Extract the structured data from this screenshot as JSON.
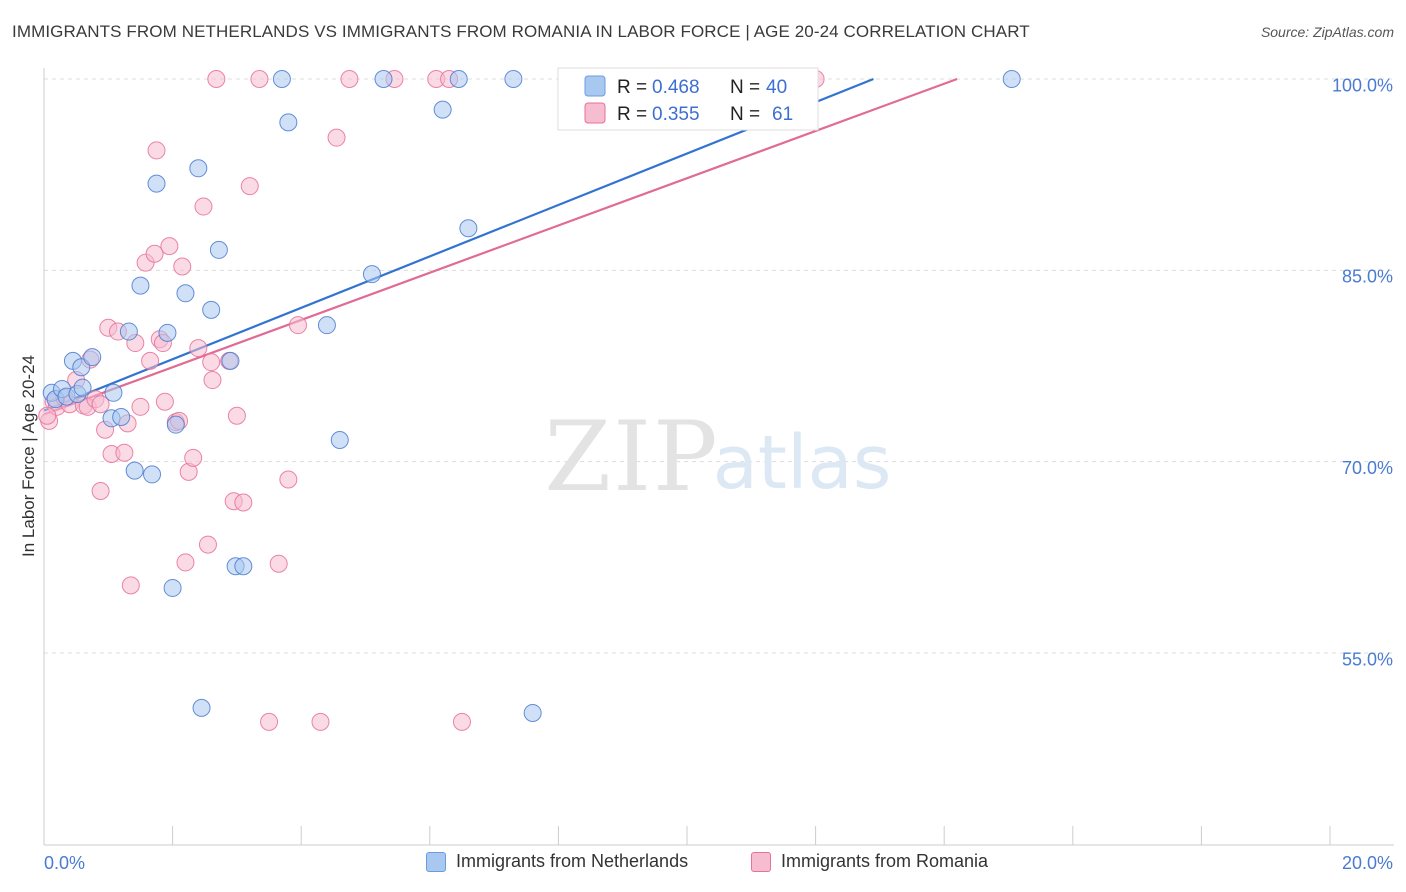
{
  "header": {
    "title": "IMMIGRANTS FROM NETHERLANDS VS IMMIGRANTS FROM ROMANIA IN LABOR FORCE | AGE 20-24 CORRELATION CHART",
    "source": "Source: ZipAtlas.com"
  },
  "colors": {
    "blue": "#4a7bd0",
    "blue_fill": "#a9c8f0",
    "blue_line": "#3273d1",
    "pink": "#e8709a",
    "pink_fill": "#f6bccf",
    "pink_line": "#e06b94",
    "grid": "#dddddd"
  },
  "watermark": {
    "zip": "ZIP",
    "atlas": "atlas"
  },
  "legend": {
    "rows": [
      {
        "r_label": "R = ",
        "r_value": "0.468",
        "n_label": "N = ",
        "n_value": "40"
      },
      {
        "r_label": "R = ",
        "r_value": "0.355",
        "n_label": "N = ",
        "n_value": "61"
      }
    ]
  },
  "bottom_legend": {
    "netherlands": "Immigrants from Netherlands",
    "romania": "Immigrants from Romania"
  },
  "chart_data": {
    "type": "scatter",
    "title": "IMMIGRANTS FROM NETHERLANDS VS IMMIGRANTS FROM ROMANIA IN LABOR FORCE | AGE 20-24 CORRELATION CHART",
    "xlabel": "",
    "ylabel": "In Labor Force | Age 20-24",
    "xlim": [
      0,
      20
    ],
    "ylim": [
      40,
      101
    ],
    "x_tick_labels": [
      {
        "value": 0,
        "label": "0.0%"
      },
      {
        "value": 20,
        "label": "20.0%"
      }
    ],
    "y_tick_labels": [
      {
        "value": 100,
        "label": "100.0%"
      },
      {
        "value": 85,
        "label": "85.0%"
      },
      {
        "value": 70,
        "label": "70.0%"
      },
      {
        "value": 55,
        "label": "55.0%"
      }
    ],
    "gridlines_y": [
      100.5,
      85.5,
      70.5,
      55.5
    ],
    "series": [
      {
        "name": "Immigrants from Netherlands",
        "color": "#4a7bd0",
        "r": 0.468,
        "n": 40,
        "trend": {
          "x0": 0,
          "y0": 74.5,
          "x1": 12.9,
          "y1": 100.5
        },
        "points": [
          [
            0.12,
            75.9
          ],
          [
            0.18,
            75.4
          ],
          [
            0.28,
            76.2
          ],
          [
            0.35,
            75.6
          ],
          [
            0.45,
            78.4
          ],
          [
            0.52,
            75.8
          ],
          [
            0.58,
            77.9
          ],
          [
            0.6,
            76.3
          ],
          [
            0.75,
            78.7
          ],
          [
            1.05,
            73.9
          ],
          [
            1.08,
            75.9
          ],
          [
            1.2,
            74.0
          ],
          [
            1.32,
            80.7
          ],
          [
            1.41,
            69.8
          ],
          [
            1.5,
            84.3
          ],
          [
            1.68,
            69.5
          ],
          [
            1.75,
            92.3
          ],
          [
            1.92,
            80.6
          ],
          [
            2.0,
            60.6
          ],
          [
            2.05,
            73.4
          ],
          [
            2.2,
            83.7
          ],
          [
            2.4,
            93.5
          ],
          [
            2.45,
            51.2
          ],
          [
            2.6,
            82.4
          ],
          [
            2.72,
            87.1
          ],
          [
            2.9,
            78.4
          ],
          [
            2.98,
            62.3
          ],
          [
            3.1,
            62.3
          ],
          [
            3.7,
            100.5
          ],
          [
            3.8,
            97.1
          ],
          [
            4.4,
            81.2
          ],
          [
            4.6,
            72.2
          ],
          [
            5.1,
            85.2
          ],
          [
            5.28,
            100.5
          ],
          [
            6.2,
            98.1
          ],
          [
            6.45,
            100.5
          ],
          [
            6.6,
            88.8
          ],
          [
            7.3,
            100.5
          ],
          [
            7.6,
            50.8
          ],
          [
            15.05,
            100.5
          ]
        ]
      },
      {
        "name": "Immigrants from Romania",
        "color": "#e8709a",
        "r": 0.355,
        "n": 61,
        "trend": {
          "x0": 0,
          "y0": 74.2,
          "x1": 14.2,
          "y1": 100.5
        },
        "points": [
          [
            0.08,
            73.7
          ],
          [
            0.15,
            75.2
          ],
          [
            0.2,
            74.8
          ],
          [
            0.32,
            75.5
          ],
          [
            0.4,
            75.0
          ],
          [
            0.5,
            76.9
          ],
          [
            0.62,
            74.9
          ],
          [
            0.68,
            74.8
          ],
          [
            0.72,
            78.5
          ],
          [
            0.8,
            75.4
          ],
          [
            0.88,
            75.0
          ],
          [
            0.88,
            68.2
          ],
          [
            0.95,
            73.0
          ],
          [
            1.0,
            81.0
          ],
          [
            1.05,
            71.1
          ],
          [
            1.15,
            80.7
          ],
          [
            1.25,
            71.2
          ],
          [
            1.3,
            73.5
          ],
          [
            1.35,
            60.8
          ],
          [
            1.42,
            79.8
          ],
          [
            1.5,
            74.8
          ],
          [
            1.58,
            86.1
          ],
          [
            1.65,
            78.4
          ],
          [
            1.72,
            86.8
          ],
          [
            1.75,
            94.9
          ],
          [
            1.8,
            80.1
          ],
          [
            1.85,
            79.8
          ],
          [
            1.88,
            75.2
          ],
          [
            1.95,
            87.4
          ],
          [
            2.05,
            73.6
          ],
          [
            2.1,
            73.7
          ],
          [
            2.15,
            85.8
          ],
          [
            2.2,
            62.6
          ],
          [
            2.25,
            69.7
          ],
          [
            2.32,
            70.8
          ],
          [
            2.4,
            79.4
          ],
          [
            2.48,
            90.5
          ],
          [
            2.55,
            64.0
          ],
          [
            2.6,
            78.3
          ],
          [
            2.62,
            76.9
          ],
          [
            2.68,
            100.5
          ],
          [
            2.88,
            78.4
          ],
          [
            2.95,
            67.4
          ],
          [
            3.0,
            74.1
          ],
          [
            3.1,
            67.3
          ],
          [
            3.2,
            92.1
          ],
          [
            3.35,
            100.5
          ],
          [
            3.5,
            50.1
          ],
          [
            3.65,
            62.5
          ],
          [
            3.8,
            69.1
          ],
          [
            3.95,
            81.2
          ],
          [
            4.3,
            50.1
          ],
          [
            4.55,
            95.9
          ],
          [
            4.75,
            100.5
          ],
          [
            5.45,
            100.5
          ],
          [
            6.1,
            100.5
          ],
          [
            6.3,
            100.5
          ],
          [
            6.5,
            50.1
          ],
          [
            11.85,
            100.5
          ],
          [
            12.0,
            100.5
          ],
          [
            0.05,
            74.1
          ]
        ]
      }
    ]
  }
}
